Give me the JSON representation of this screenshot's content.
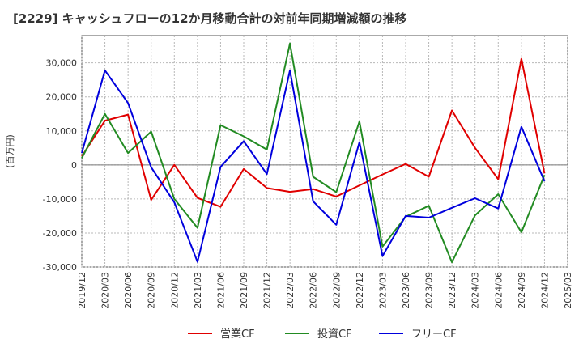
{
  "chart_data": {
    "type": "line",
    "title": "[2229]  キャッシュフローの12か月移動合計の対前年同期増減額の推移",
    "ylabel": "(百万円)",
    "xlabel": "",
    "ylim": [
      -30000,
      38000
    ],
    "yticks": [
      30000,
      20000,
      10000,
      0,
      -10000,
      -20000,
      -30000
    ],
    "ytick_labels": [
      "30,000",
      "20,000",
      "10,000",
      "0",
      "-10,000",
      "-20,000",
      "-30,000"
    ],
    "categories": [
      "2019/12",
      "2020/03",
      "2020/06",
      "2020/09",
      "2020/12",
      "2021/03",
      "2021/06",
      "2021/09",
      "2021/12",
      "2022/03",
      "2022/06",
      "2022/09",
      "2022/12",
      "2023/03",
      "2023/06",
      "2023/09",
      "2023/12",
      "2024/03",
      "2024/06",
      "2024/09",
      "2024/12",
      "2025/03"
    ],
    "grid": true,
    "legend_position": "bottom",
    "series": [
      {
        "name": "営業CF",
        "color": "#e00000",
        "values": [
          2500,
          13000,
          14800,
          -10300,
          0,
          -9700,
          -12300,
          -1200,
          -6800,
          -7900,
          -7100,
          -9300,
          -6000,
          -2800,
          300,
          -3500,
          16000,
          5000,
          -4200,
          31200,
          -2500,
          null
        ]
      },
      {
        "name": "投資CF",
        "color": "#228b22",
        "values": [
          2000,
          15000,
          3500,
          9800,
          -10000,
          -18500,
          11700,
          8400,
          4500,
          35700,
          -3500,
          -8000,
          12800,
          -24000,
          -15200,
          -12000,
          -28600,
          -14800,
          -8600,
          -19800,
          -3000,
          null
        ]
      },
      {
        "name": "フリーCF",
        "color": "#0000dd",
        "values": [
          3500,
          27800,
          18200,
          -700,
          -11000,
          -28500,
          -600,
          7000,
          -2700,
          27800,
          -10700,
          -17600,
          6700,
          -26800,
          -15000,
          -15500,
          -12600,
          -9800,
          -12800,
          11200,
          -4800,
          null
        ]
      }
    ]
  }
}
